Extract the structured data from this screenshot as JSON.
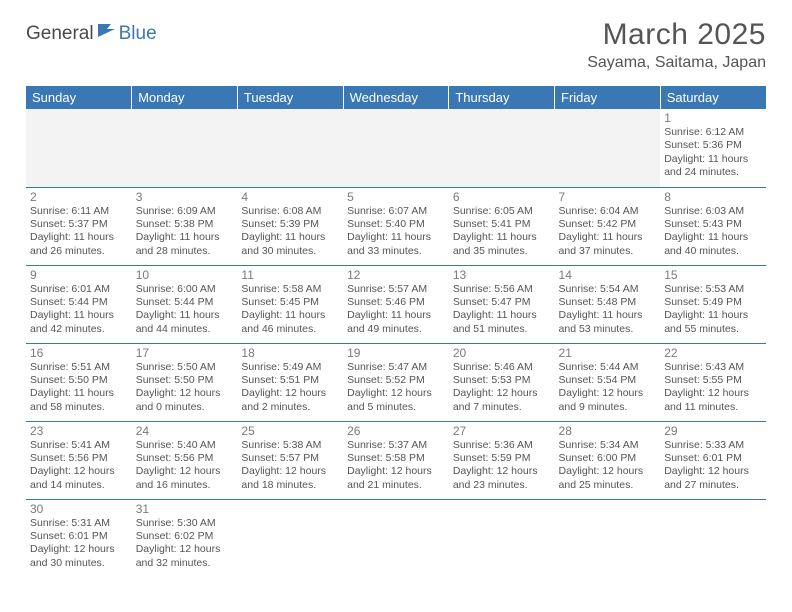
{
  "logo": {
    "text1": "General",
    "text2": "Blue"
  },
  "title": "March 2025",
  "location": "Sayama, Saitama, Japan",
  "columns": [
    "Sunday",
    "Monday",
    "Tuesday",
    "Wednesday",
    "Thursday",
    "Friday",
    "Saturday"
  ],
  "colors": {
    "header_bg": "#3a78b5",
    "header_text": "#ffffff",
    "border": "#3a78b5",
    "text": "#555555",
    "daynum": "#7a7a7a",
    "empty_bg": "#f3f3f3"
  },
  "weeks": [
    [
      null,
      null,
      null,
      null,
      null,
      null,
      {
        "n": "1",
        "sr": "6:12 AM",
        "ss": "5:36 PM",
        "dl": "11 hours and 24 minutes."
      }
    ],
    [
      {
        "n": "2",
        "sr": "6:11 AM",
        "ss": "5:37 PM",
        "dl": "11 hours and 26 minutes."
      },
      {
        "n": "3",
        "sr": "6:09 AM",
        "ss": "5:38 PM",
        "dl": "11 hours and 28 minutes."
      },
      {
        "n": "4",
        "sr": "6:08 AM",
        "ss": "5:39 PM",
        "dl": "11 hours and 30 minutes."
      },
      {
        "n": "5",
        "sr": "6:07 AM",
        "ss": "5:40 PM",
        "dl": "11 hours and 33 minutes."
      },
      {
        "n": "6",
        "sr": "6:05 AM",
        "ss": "5:41 PM",
        "dl": "11 hours and 35 minutes."
      },
      {
        "n": "7",
        "sr": "6:04 AM",
        "ss": "5:42 PM",
        "dl": "11 hours and 37 minutes."
      },
      {
        "n": "8",
        "sr": "6:03 AM",
        "ss": "5:43 PM",
        "dl": "11 hours and 40 minutes."
      }
    ],
    [
      {
        "n": "9",
        "sr": "6:01 AM",
        "ss": "5:44 PM",
        "dl": "11 hours and 42 minutes."
      },
      {
        "n": "10",
        "sr": "6:00 AM",
        "ss": "5:44 PM",
        "dl": "11 hours and 44 minutes."
      },
      {
        "n": "11",
        "sr": "5:58 AM",
        "ss": "5:45 PM",
        "dl": "11 hours and 46 minutes."
      },
      {
        "n": "12",
        "sr": "5:57 AM",
        "ss": "5:46 PM",
        "dl": "11 hours and 49 minutes."
      },
      {
        "n": "13",
        "sr": "5:56 AM",
        "ss": "5:47 PM",
        "dl": "11 hours and 51 minutes."
      },
      {
        "n": "14",
        "sr": "5:54 AM",
        "ss": "5:48 PM",
        "dl": "11 hours and 53 minutes."
      },
      {
        "n": "15",
        "sr": "5:53 AM",
        "ss": "5:49 PM",
        "dl": "11 hours and 55 minutes."
      }
    ],
    [
      {
        "n": "16",
        "sr": "5:51 AM",
        "ss": "5:50 PM",
        "dl": "11 hours and 58 minutes."
      },
      {
        "n": "17",
        "sr": "5:50 AM",
        "ss": "5:50 PM",
        "dl": "12 hours and 0 minutes."
      },
      {
        "n": "18",
        "sr": "5:49 AM",
        "ss": "5:51 PM",
        "dl": "12 hours and 2 minutes."
      },
      {
        "n": "19",
        "sr": "5:47 AM",
        "ss": "5:52 PM",
        "dl": "12 hours and 5 minutes."
      },
      {
        "n": "20",
        "sr": "5:46 AM",
        "ss": "5:53 PM",
        "dl": "12 hours and 7 minutes."
      },
      {
        "n": "21",
        "sr": "5:44 AM",
        "ss": "5:54 PM",
        "dl": "12 hours and 9 minutes."
      },
      {
        "n": "22",
        "sr": "5:43 AM",
        "ss": "5:55 PM",
        "dl": "12 hours and 11 minutes."
      }
    ],
    [
      {
        "n": "23",
        "sr": "5:41 AM",
        "ss": "5:56 PM",
        "dl": "12 hours and 14 minutes."
      },
      {
        "n": "24",
        "sr": "5:40 AM",
        "ss": "5:56 PM",
        "dl": "12 hours and 16 minutes."
      },
      {
        "n": "25",
        "sr": "5:38 AM",
        "ss": "5:57 PM",
        "dl": "12 hours and 18 minutes."
      },
      {
        "n": "26",
        "sr": "5:37 AM",
        "ss": "5:58 PM",
        "dl": "12 hours and 21 minutes."
      },
      {
        "n": "27",
        "sr": "5:36 AM",
        "ss": "5:59 PM",
        "dl": "12 hours and 23 minutes."
      },
      {
        "n": "28",
        "sr": "5:34 AM",
        "ss": "6:00 PM",
        "dl": "12 hours and 25 minutes."
      },
      {
        "n": "29",
        "sr": "5:33 AM",
        "ss": "6:01 PM",
        "dl": "12 hours and 27 minutes."
      }
    ],
    [
      {
        "n": "30",
        "sr": "5:31 AM",
        "ss": "6:01 PM",
        "dl": "12 hours and 30 minutes."
      },
      {
        "n": "31",
        "sr": "5:30 AM",
        "ss": "6:02 PM",
        "dl": "12 hours and 32 minutes."
      },
      null,
      null,
      null,
      null,
      null
    ]
  ]
}
